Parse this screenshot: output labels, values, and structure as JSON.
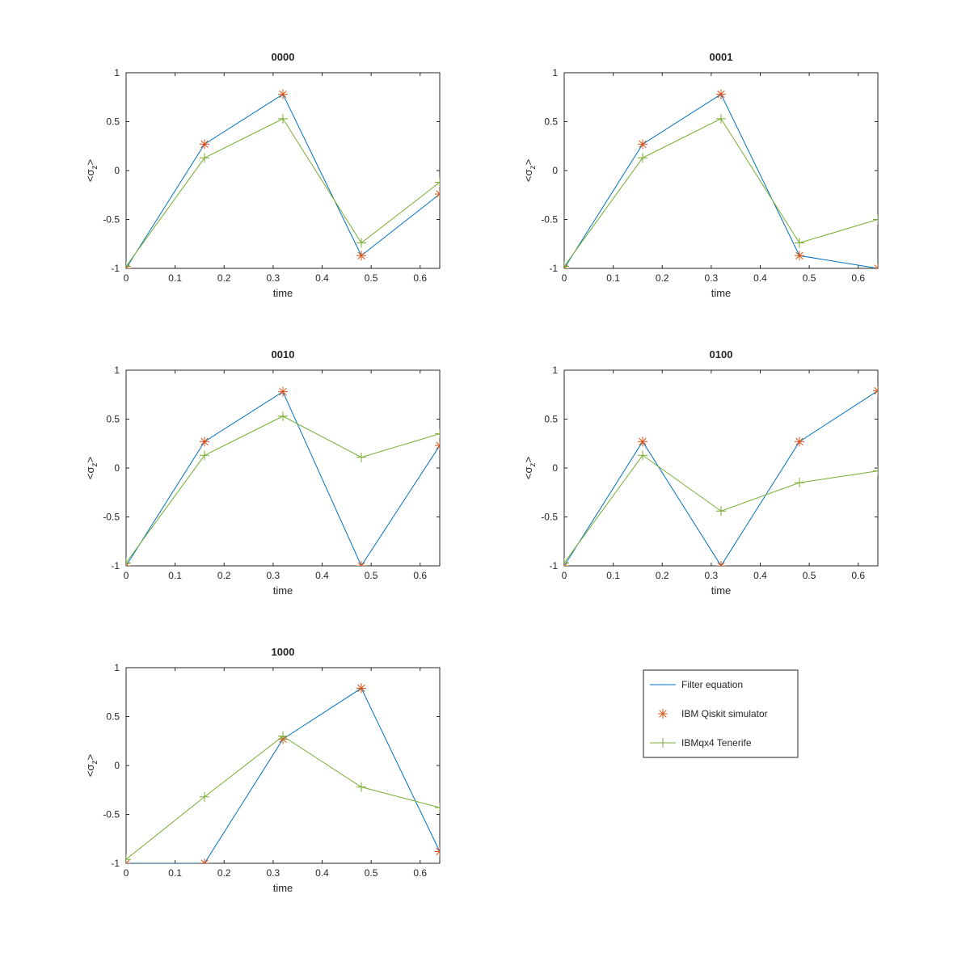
{
  "colors": {
    "filter": "#0072BD",
    "simulator": "#D95319",
    "tenerife": "#77AC30",
    "axis": "#262626",
    "background": "#ffffff"
  },
  "legend": {
    "entries": [
      {
        "series": "filter",
        "label": "Filter equation",
        "marker": "line"
      },
      {
        "series": "simulator",
        "label": "IBM Qiskit simulator",
        "marker": "asterisk"
      },
      {
        "series": "tenerife",
        "label": "IBMqx4 Tenerife",
        "marker": "line-plus"
      }
    ]
  },
  "chart_data": [
    {
      "type": "line",
      "title": "0000",
      "xlabel": "time",
      "ylabel": "<σz>",
      "xlim": [
        0,
        0.64
      ],
      "ylim": [
        -1,
        1
      ],
      "xticks": [
        "0",
        "0.1",
        "0.2",
        "0.3",
        "0.4",
        "0.5",
        "0.6"
      ],
      "yticks": [
        "-1",
        "-0.5",
        "0",
        "0.5",
        "1"
      ],
      "x": [
        0,
        0.16,
        0.32,
        0.48,
        0.64
      ],
      "series": [
        {
          "name": "Filter equation",
          "key": "filter",
          "values": [
            -1,
            0.27,
            0.78,
            -0.87,
            -0.24
          ]
        },
        {
          "name": "IBM Qiskit simulator",
          "key": "simulator",
          "values": [
            -1,
            0.27,
            0.78,
            -0.87,
            -0.24
          ]
        },
        {
          "name": "IBMqx4 Tenerife",
          "key": "tenerife",
          "values": [
            -0.98,
            0.13,
            0.53,
            -0.74,
            -0.12
          ]
        }
      ]
    },
    {
      "type": "line",
      "title": "0001",
      "xlabel": "time",
      "ylabel": "<σz>",
      "xlim": [
        0,
        0.64
      ],
      "ylim": [
        -1,
        1
      ],
      "xticks": [
        "0",
        "0.1",
        "0.2",
        "0.3",
        "0.4",
        "0.5",
        "0.6"
      ],
      "yticks": [
        "-1",
        "-0.5",
        "0",
        "0.5",
        "1"
      ],
      "x": [
        0,
        0.16,
        0.32,
        0.48,
        0.64
      ],
      "series": [
        {
          "name": "Filter equation",
          "key": "filter",
          "values": [
            -1,
            0.27,
            0.78,
            -0.87,
            -1
          ]
        },
        {
          "name": "IBM Qiskit simulator",
          "key": "simulator",
          "values": [
            -1,
            0.27,
            0.78,
            -0.87,
            -1
          ]
        },
        {
          "name": "IBMqx4 Tenerife",
          "key": "tenerife",
          "values": [
            -0.98,
            0.13,
            0.53,
            -0.74,
            -0.5
          ]
        }
      ]
    },
    {
      "type": "line",
      "title": "0010",
      "xlabel": "time",
      "ylabel": "<σz>",
      "xlim": [
        0,
        0.64
      ],
      "ylim": [
        -1,
        1
      ],
      "xticks": [
        "0",
        "0.1",
        "0.2",
        "0.3",
        "0.4",
        "0.5",
        "0.6"
      ],
      "yticks": [
        "-1",
        "-0.5",
        "0",
        "0.5",
        "1"
      ],
      "x": [
        0,
        0.16,
        0.32,
        0.48,
        0.64
      ],
      "series": [
        {
          "name": "Filter equation",
          "key": "filter",
          "values": [
            -1,
            0.27,
            0.78,
            -1,
            0.23
          ]
        },
        {
          "name": "IBM Qiskit simulator",
          "key": "simulator",
          "values": [
            -1,
            0.27,
            0.78,
            -1,
            0.23
          ]
        },
        {
          "name": "IBMqx4 Tenerife",
          "key": "tenerife",
          "values": [
            -0.97,
            0.13,
            0.53,
            0.11,
            0.35
          ]
        }
      ]
    },
    {
      "type": "line",
      "title": "0100",
      "xlabel": "time",
      "ylabel": "<σz>",
      "xlim": [
        0,
        0.64
      ],
      "ylim": [
        -1,
        1
      ],
      "xticks": [
        "0",
        "0.1",
        "0.2",
        "0.3",
        "0.4",
        "0.5",
        "0.6"
      ],
      "yticks": [
        "-1",
        "-0.5",
        "0",
        "0.5",
        "1"
      ],
      "x": [
        0,
        0.16,
        0.32,
        0.48,
        0.64
      ],
      "series": [
        {
          "name": "Filter equation",
          "key": "filter",
          "values": [
            -1,
            0.27,
            -1,
            0.27,
            0.79
          ]
        },
        {
          "name": "IBM Qiskit simulator",
          "key": "simulator",
          "values": [
            -1,
            0.27,
            -1,
            0.27,
            0.79
          ]
        },
        {
          "name": "IBMqx4 Tenerife",
          "key": "tenerife",
          "values": [
            -0.97,
            0.13,
            -0.44,
            -0.15,
            -0.03
          ]
        }
      ]
    },
    {
      "type": "line",
      "title": "1000",
      "xlabel": "time",
      "ylabel": "<σz>",
      "xlim": [
        0,
        0.64
      ],
      "ylim": [
        -1,
        1
      ],
      "xticks": [
        "0",
        "0.1",
        "0.2",
        "0.3",
        "0.4",
        "0.5",
        "0.6"
      ],
      "yticks": [
        "-1",
        "-0.5",
        "0",
        "0.5",
        "1"
      ],
      "x": [
        0,
        0.16,
        0.32,
        0.48,
        0.64
      ],
      "series": [
        {
          "name": "Filter equation",
          "key": "filter",
          "values": [
            -1,
            -1,
            0.27,
            0.79,
            -0.88
          ]
        },
        {
          "name": "IBM Qiskit simulator",
          "key": "simulator",
          "values": [
            -1,
            -1,
            0.27,
            0.79,
            -0.88
          ]
        },
        {
          "name": "IBMqx4 Tenerife",
          "key": "tenerife",
          "values": [
            -0.96,
            -0.32,
            0.3,
            -0.22,
            -0.43
          ]
        }
      ]
    }
  ]
}
